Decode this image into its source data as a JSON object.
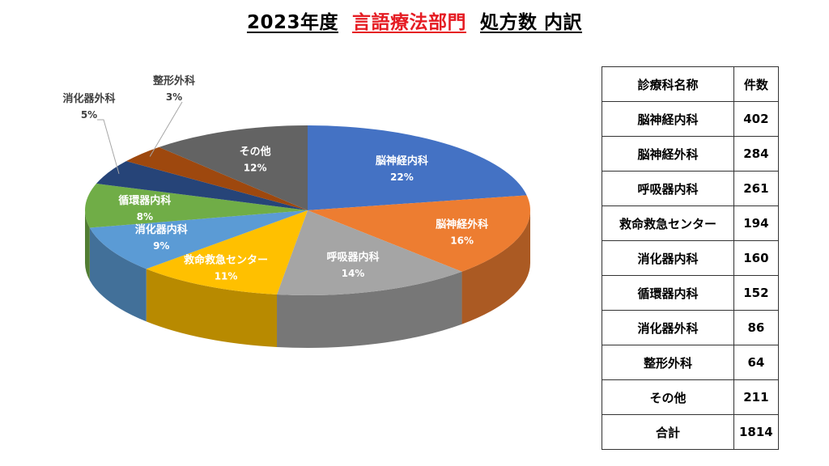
{
  "title": {
    "year": "2023年度",
    "department": "言語療法部門",
    "suffix": "処方数 内訳",
    "department_color": "#e51c23"
  },
  "chart_data": {
    "type": "pie",
    "style": "3d",
    "slices": [
      {
        "label": "脳神経内科",
        "value": 402,
        "percent": "22%",
        "color": "#4472c4"
      },
      {
        "label": "脳神経外科",
        "value": 284,
        "percent": "16%",
        "color": "#ed7d31"
      },
      {
        "label": "呼吸器内科",
        "value": 261,
        "percent": "14%",
        "color": "#a5a5a5"
      },
      {
        "label": "救命救急センター",
        "value": 194,
        "percent": "11%",
        "color": "#ffc000"
      },
      {
        "label": "消化器内科",
        "value": 160,
        "percent": "9%",
        "color": "#5b9bd5"
      },
      {
        "label": "循環器内科",
        "value": 152,
        "percent": "8%",
        "color": "#70ad47"
      },
      {
        "label": "消化器外科",
        "value": 86,
        "percent": "5%",
        "color": "#264478"
      },
      {
        "label": "整形外科",
        "value": 64,
        "percent": "3%",
        "color": "#9e480e"
      },
      {
        "label": "その他",
        "value": 211,
        "percent": "12%",
        "color": "#636363"
      }
    ]
  },
  "table": {
    "headers": [
      "診療科名称",
      "件数"
    ],
    "rows": [
      [
        "脳神経内科",
        "402"
      ],
      [
        "脳神経外科",
        "284"
      ],
      [
        "呼吸器内科",
        "261"
      ],
      [
        "救命救急センター",
        "194"
      ],
      [
        "消化器内科",
        "160"
      ],
      [
        "循環器内科",
        "152"
      ],
      [
        "消化器外科",
        "86"
      ],
      [
        "整形外科",
        "64"
      ],
      [
        "その他",
        "211"
      ]
    ],
    "total": [
      "合計",
      "1814"
    ]
  }
}
